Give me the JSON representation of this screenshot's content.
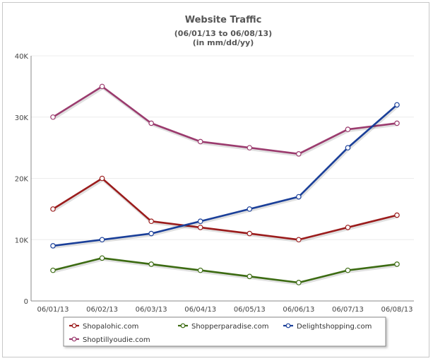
{
  "chart_data": {
    "type": "line",
    "title": "Website Traffic",
    "subtitle": [
      "(06/01/13 to 06/08/13)",
      "(in mm/dd/yy)"
    ],
    "xlabel": "",
    "ylabel": "",
    "categories": [
      "06/01/13",
      "06/02/13",
      "06/03/13",
      "06/04/13",
      "06/05/13",
      "06/06/13",
      "06/07/13",
      "06/08/13"
    ],
    "y_ticks": [
      "0",
      "10K",
      "20K",
      "30K",
      "40K"
    ],
    "ylim": [
      0,
      40000
    ],
    "grid": true,
    "legend_position": "bottom",
    "series": [
      {
        "name": "Shopalohic.com",
        "color": "#9b1c1c",
        "values": [
          15000,
          20000,
          13000,
          12000,
          11000,
          10000,
          12000,
          14000
        ]
      },
      {
        "name": "Shopperparadise.com",
        "color": "#3c6b12",
        "values": [
          5000,
          7000,
          6000,
          5000,
          4000,
          3000,
          5000,
          6000
        ]
      },
      {
        "name": "Delightshopping.com",
        "color": "#1a3f99",
        "values": [
          9000,
          10000,
          11000,
          13000,
          15000,
          17000,
          25000,
          32000
        ]
      },
      {
        "name": "Shoptillyoudie.com",
        "color": "#9b3b6e",
        "values": [
          30000,
          35000,
          29000,
          26000,
          25000,
          24000,
          28000,
          29000
        ]
      }
    ]
  }
}
